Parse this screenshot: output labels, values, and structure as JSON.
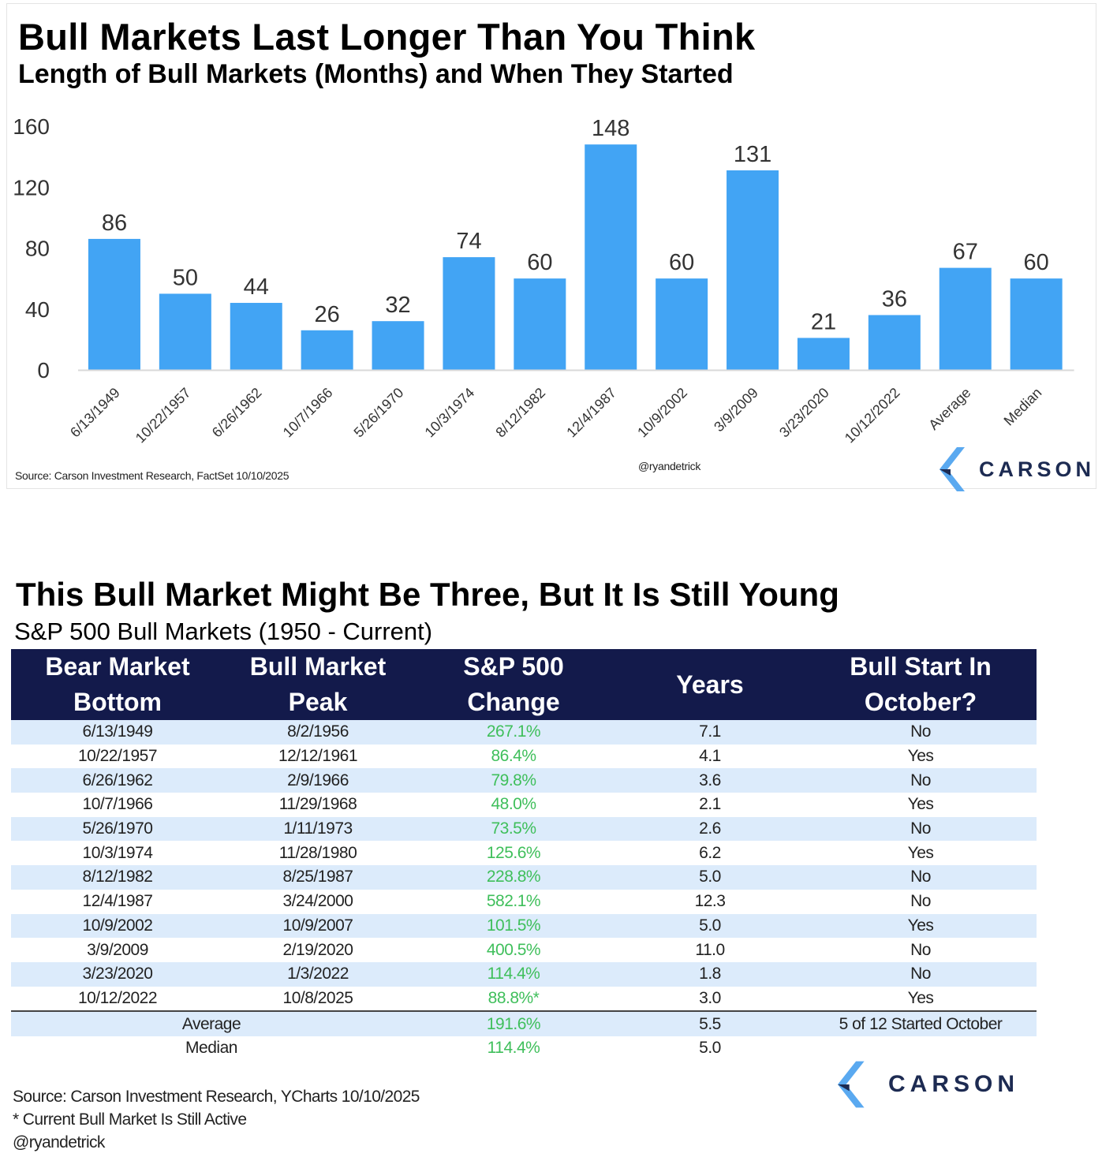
{
  "chart": {
    "title": "Bull Markets Last Longer Than You Think",
    "subtitle": "Length of Bull Markets (Months) and When They Started",
    "source": "Source: Carson Investment Research, FactSet 10/10/2025",
    "handle": "@ryandetrick",
    "logo_text": "CARSON",
    "logo_icon": "carson-chevron-logo"
  },
  "chart_data": {
    "type": "bar",
    "title": "Bull Markets Last Longer Than You Think",
    "subtitle": "Length of Bull Markets (Months) and When They Started",
    "categories": [
      "6/13/1949",
      "10/22/1957",
      "6/26/1962",
      "10/7/1966",
      "5/26/1970",
      "10/3/1974",
      "8/12/1982",
      "12/4/1987",
      "10/9/2002",
      "3/9/2009",
      "3/23/2020",
      "10/12/2022",
      "Average",
      "Median"
    ],
    "values": [
      86,
      50,
      44,
      26,
      32,
      74,
      60,
      148,
      60,
      131,
      21,
      36,
      67,
      60
    ],
    "ylim": [
      0,
      160
    ],
    "yticks": [
      0,
      40,
      80,
      120,
      160
    ],
    "xlabel": "",
    "ylabel": "",
    "grid": false,
    "data_labels": true,
    "bar_color": "#42a4f4"
  },
  "table": {
    "title": "This Bull Market Might Be Three, But It Is Still Young",
    "subtitle": "S&P 500 Bull Markets (1950 - Current)",
    "headers": [
      [
        "Bear Market",
        "Bottom"
      ],
      [
        "Bull Market",
        "Peak"
      ],
      [
        "S&P 500",
        "Change"
      ],
      [
        "Years"
      ],
      [
        "Bull Start In",
        "October?"
      ]
    ],
    "rows": [
      [
        "6/13/1949",
        "8/2/1956",
        "267.1%",
        "7.1",
        "No"
      ],
      [
        "10/22/1957",
        "12/12/1961",
        "86.4%",
        "4.1",
        "Yes"
      ],
      [
        "6/26/1962",
        "2/9/1966",
        "79.8%",
        "3.6",
        "No"
      ],
      [
        "10/7/1966",
        "11/29/1968",
        "48.0%",
        "2.1",
        "Yes"
      ],
      [
        "5/26/1970",
        "1/11/1973",
        "73.5%",
        "2.6",
        "No"
      ],
      [
        "10/3/1974",
        "11/28/1980",
        "125.6%",
        "6.2",
        "Yes"
      ],
      [
        "8/12/1982",
        "8/25/1987",
        "228.8%",
        "5.0",
        "No"
      ],
      [
        "12/4/1987",
        "3/24/2000",
        "582.1%",
        "12.3",
        "No"
      ],
      [
        "10/9/2002",
        "10/9/2007",
        "101.5%",
        "5.0",
        "Yes"
      ],
      [
        "3/9/2009",
        "2/19/2020",
        "400.5%",
        "11.0",
        "No"
      ],
      [
        "3/23/2020",
        "1/3/2022",
        "114.4%",
        "1.8",
        "No"
      ],
      [
        "10/12/2022",
        "10/8/2025",
        "88.8%*",
        "3.0",
        "Yes"
      ]
    ],
    "summary": [
      {
        "label": "Average",
        "change": "191.6%",
        "years": "5.5",
        "note": "5 of 12 Started October"
      },
      {
        "label": "Median",
        "change": "114.4%",
        "years": "5.0",
        "note": ""
      }
    ],
    "source_lines": [
      "Source: Carson Investment Research, YCharts 10/10/2025",
      "* Current Bull Market Is Still Active",
      "@ryandetrick"
    ],
    "logo_text": "CARSON",
    "logo_icon": "carson-chevron-logo"
  },
  "colors": {
    "bar": "#42a4f4",
    "header_bg": "#131a4b",
    "stripe": "#dcebfb",
    "change_text": "#3fbf5b",
    "logo_light": "#5aa9f0",
    "logo_dark": "#1d2b52"
  }
}
